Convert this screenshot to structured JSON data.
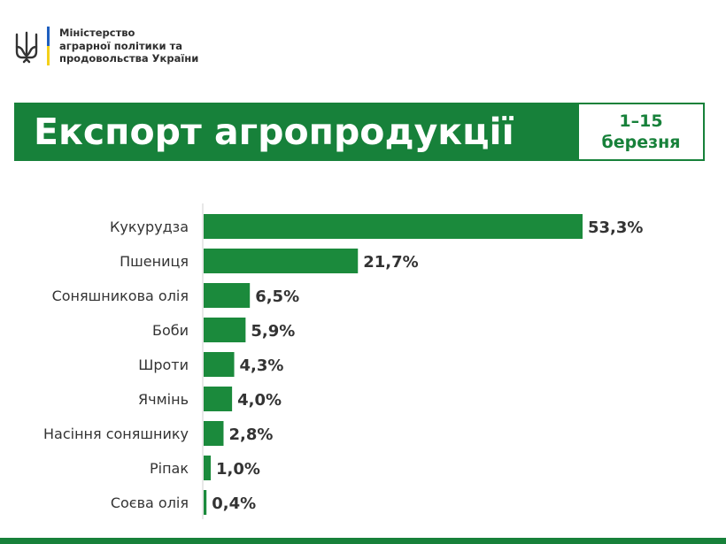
{
  "header": {
    "ministry_lines": [
      "Міністерство",
      "аграрної політики та",
      "продовольства України"
    ],
    "emblem_icon": "trident-icon"
  },
  "banner": {
    "title": "Експорт агропродукції",
    "period_line1": "1–15",
    "period_line2": "березня"
  },
  "colors": {
    "brand_green": "#17813a",
    "bar_green": "#1b8a3c",
    "flag_blue": "#1f5fbf",
    "flag_yellow": "#f4d01a"
  },
  "chart_data": {
    "type": "bar",
    "orientation": "horizontal",
    "title": "",
    "xlabel": "",
    "ylabel": "",
    "categories": [
      "Кукурудза",
      "Пшениця",
      "Соняшникова олія",
      "Боби",
      "Шроти",
      "Ячмінь",
      "Насіння соняшнику",
      "Ріпак",
      "Соєва олія"
    ],
    "values": [
      53.3,
      21.7,
      6.5,
      5.9,
      4.3,
      4.0,
      2.8,
      1.0,
      0.4
    ],
    "value_labels": [
      "53,3%",
      "21,7%",
      "6,5%",
      "5,9%",
      "4,3%",
      "4,0%",
      "2,8%",
      "1,0%",
      "0,4%"
    ],
    "xlim": [
      0,
      53.3
    ],
    "grid": false,
    "legend": "none"
  }
}
